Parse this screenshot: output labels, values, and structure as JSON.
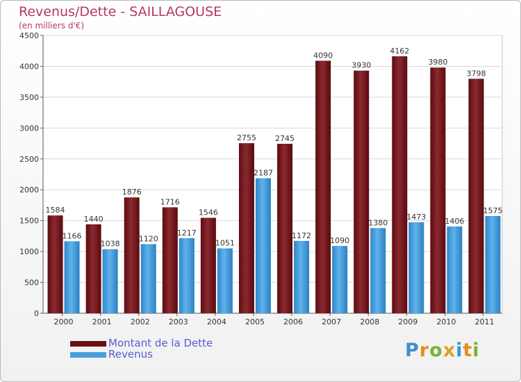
{
  "header": {
    "title": "Revenus/Dette - SAILLAGOUSE",
    "subtitle": "(en milliers d'€)"
  },
  "chart_data": {
    "type": "bar",
    "title": "Revenus/Dette - SAILLAGOUSE",
    "ylabel": "(en milliers d'€)",
    "xlabel": "",
    "ylim": [
      0,
      4500
    ],
    "yticks": [
      0,
      500,
      1000,
      1500,
      2000,
      2500,
      3000,
      3500,
      4000,
      4500
    ],
    "categories": [
      "2000",
      "2001",
      "2002",
      "2003",
      "2004",
      "2005",
      "2006",
      "2007",
      "2008",
      "2009",
      "2010",
      "2011"
    ],
    "series": [
      {
        "name": "Montant de la Dette",
        "color": "#7a1a22",
        "values": [
          1584,
          1440,
          1876,
          1716,
          1546,
          2755,
          2745,
          4090,
          3930,
          4162,
          3980,
          3798
        ]
      },
      {
        "name": "Revenus",
        "color": "#4a9fdc",
        "values": [
          1166,
          1038,
          1120,
          1217,
          1051,
          2187,
          1172,
          1090,
          1380,
          1473,
          1406,
          1575
        ]
      }
    ],
    "grid": true,
    "legend": "bottom-left"
  },
  "legend": {
    "items": [
      {
        "label": "Montant de la Dette"
      },
      {
        "label": "Revenus"
      }
    ]
  },
  "brand": {
    "letters": [
      "P",
      "r",
      "o",
      "x",
      "i",
      "t",
      "i"
    ]
  }
}
